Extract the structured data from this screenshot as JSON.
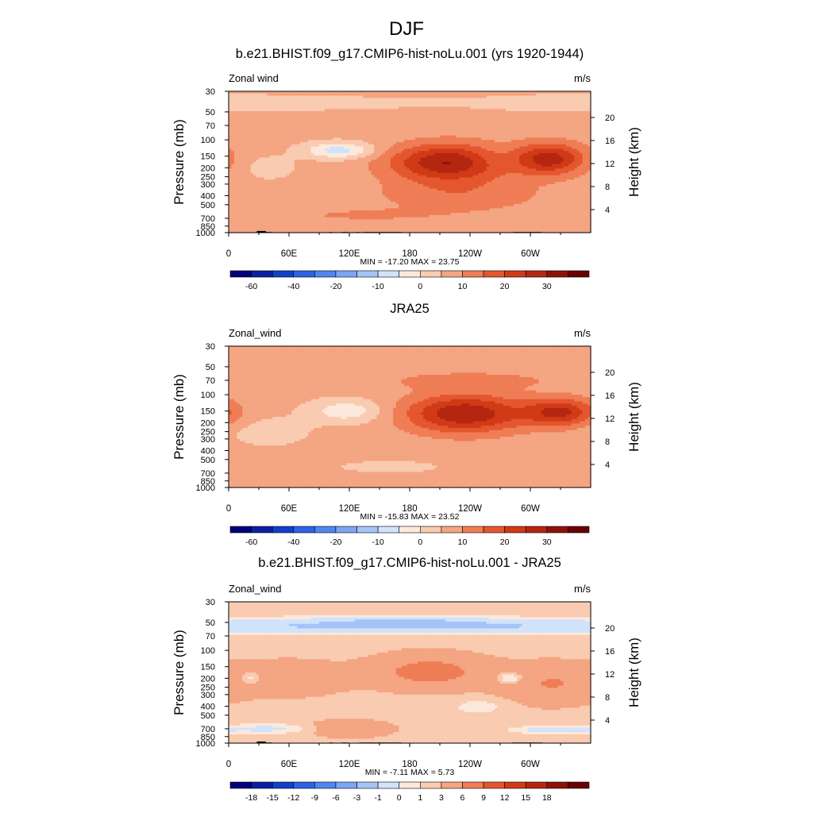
{
  "figure": {
    "season_title": "DJF"
  },
  "chart_data": [
    {
      "type": "heatmap",
      "title": "b.e21.BHIST.f09_g17.CMIP6-hist-noLu.001 (yrs 1920-1944)",
      "variable_label": "Zonal wind",
      "units": "m/s",
      "ylabel": "Pressure (mb)",
      "y2label": "Height (km)",
      "x_ticks": [
        "0",
        "60E",
        "120E",
        "180",
        "120W",
        "60W"
      ],
      "x_tick_lon": [
        0,
        60,
        120,
        180,
        240,
        300
      ],
      "xlim": [
        0,
        360
      ],
      "y_ticks": [
        "30",
        "50",
        "70",
        "100",
        "150",
        "200",
        "250",
        "300",
        "400",
        "500",
        "700",
        "850",
        "1000"
      ],
      "y_tick_p": [
        30,
        50,
        70,
        100,
        150,
        200,
        250,
        300,
        400,
        500,
        700,
        850,
        1000
      ],
      "ylim_mb": [
        1000,
        30
      ],
      "y_scale": "log",
      "height_ticks": [
        "4",
        "8",
        "12",
        "16",
        "20"
      ],
      "height_km": [
        4,
        8,
        12,
        16,
        20
      ],
      "stats_text": "MIN = -17.20  MAX =  23.75",
      "min": -17.2,
      "max": 23.75,
      "levels": [
        -70,
        -60,
        -50,
        -40,
        -30,
        -20,
        -15,
        -10,
        -5,
        0,
        5,
        10,
        15,
        20,
        25,
        30,
        35
      ],
      "colorbar_labels": [
        "-60",
        "-40",
        "-20",
        "-10",
        "0",
        "10",
        "20",
        "30"
      ],
      "colorbar_label_boundary": [
        1,
        3,
        5,
        7,
        9,
        11,
        13,
        15
      ],
      "colors": [
        "#00007a",
        "#0b1fa6",
        "#1240c8",
        "#2a63e6",
        "#4f86f0",
        "#7aa6f3",
        "#a5c4f6",
        "#d1e3fb",
        "#fde9dc",
        "#f9cbb0",
        "#f4a582",
        "#ef7d55",
        "#e4572e",
        "#d13a17",
        "#b52610",
        "#8f1208",
        "#6a0000"
      ],
      "jets": [
        {
          "lon": 110,
          "p": 130,
          "value": -14,
          "wlon": 24,
          "wlogp": 0.14
        },
        {
          "lon": 270,
          "p": 160,
          "value": -5,
          "wlon": 25,
          "wlogp": 0.25
        },
        {
          "lon": 220,
          "p": 175,
          "value": 24,
          "wlon": 42,
          "wlogp": 0.33
        },
        {
          "lon": 318,
          "p": 160,
          "value": 21,
          "wlon": 26,
          "wlogp": 0.28
        },
        {
          "lon": 230,
          "p": 400,
          "value": 7,
          "wlon": 60,
          "wlogp": 0.3
        },
        {
          "lon": 40,
          "p": 200,
          "value": -4,
          "wlon": 18,
          "wlogp": 0.2
        },
        {
          "lon": 70,
          "p": 40,
          "value": -4,
          "wlon": 90,
          "wlogp": 0.12
        },
        {
          "lon": 320,
          "p": 40,
          "value": -3,
          "wlon": 70,
          "wlogp": 0.15
        },
        {
          "lon": 130,
          "p": 650,
          "value": 4,
          "wlon": 60,
          "wlogp": 0.12
        }
      ],
      "background": 1.5,
      "topography": [
        [
          10,
          25,
          1000
        ],
        [
          28,
          37,
          960
        ],
        [
          37,
          43,
          985
        ],
        [
          100,
          103,
          985
        ],
        [
          112,
          119,
          985
        ],
        [
          127,
          130,
          985
        ],
        [
          134,
          172,
          985
        ],
        [
          283,
          311,
          985
        ]
      ]
    },
    {
      "type": "heatmap",
      "title": "JRA25",
      "variable_label": "Zonal_wind",
      "units": "m/s",
      "ylabel": "Pressure (mb)",
      "y2label": "Height (km)",
      "x_ticks": [
        "0",
        "60E",
        "120E",
        "180",
        "120W",
        "60W"
      ],
      "x_tick_lon": [
        0,
        60,
        120,
        180,
        240,
        300
      ],
      "xlim": [
        0,
        360
      ],
      "y_ticks": [
        "30",
        "50",
        "70",
        "100",
        "150",
        "200",
        "250",
        "300",
        "400",
        "500",
        "700",
        "850",
        "1000"
      ],
      "y_tick_p": [
        30,
        50,
        70,
        100,
        150,
        200,
        250,
        300,
        400,
        500,
        700,
        850,
        1000
      ],
      "ylim_mb": [
        1000,
        30
      ],
      "y_scale": "log",
      "height_ticks": [
        "4",
        "8",
        "12",
        "16",
        "20"
      ],
      "height_km": [
        4,
        8,
        12,
        16,
        20
      ],
      "stats_text": "MIN = -15.83  MAX =  23.52",
      "min": -15.83,
      "max": 23.52,
      "levels": [
        -70,
        -60,
        -50,
        -40,
        -30,
        -20,
        -15,
        -10,
        -5,
        0,
        5,
        10,
        15,
        20,
        25,
        30,
        35
      ],
      "colorbar_labels": [
        "-60",
        "-40",
        "-20",
        "-10",
        "0",
        "10",
        "20",
        "30"
      ],
      "colorbar_label_boundary": [
        1,
        3,
        5,
        7,
        9,
        11,
        13,
        15
      ],
      "colors": [
        "#00007a",
        "#0b1fa6",
        "#1240c8",
        "#2a63e6",
        "#4f86f0",
        "#7aa6f3",
        "#a5c4f6",
        "#d1e3fb",
        "#fde9dc",
        "#f9cbb0",
        "#f4a582",
        "#ef7d55",
        "#e4572e",
        "#d13a17",
        "#b52610",
        "#8f1208",
        "#6a0000"
      ],
      "jets": [
        {
          "lon": 118,
          "p": 150,
          "value": -10,
          "wlon": 26,
          "wlogp": 0.2
        },
        {
          "lon": 235,
          "p": 160,
          "value": 23,
          "wlon": 42,
          "wlogp": 0.34
        },
        {
          "lon": 330,
          "p": 155,
          "value": 19,
          "wlon": 25,
          "wlogp": 0.25
        },
        {
          "lon": 240,
          "p": 70,
          "value": 6,
          "wlon": 60,
          "wlogp": 0.15
        },
        {
          "lon": 40,
          "p": 250,
          "value": -4,
          "wlon": 28,
          "wlogp": 0.25
        },
        {
          "lon": 160,
          "p": 600,
          "value": -3,
          "wlon": 40,
          "wlogp": 0.12
        },
        {
          "lon": 70,
          "p": 850,
          "value": 3,
          "wlon": 40,
          "wlogp": 0.1
        }
      ],
      "background": 1.5,
      "topography": []
    },
    {
      "type": "heatmap",
      "title": "b.e21.BHIST.f09_g17.CMIP6-hist-noLu.001 - JRA25",
      "variable_label": "Zonal_wind",
      "units": "m/s",
      "ylabel": "Pressure (mb)",
      "y2label": "Height (km)",
      "x_ticks": [
        "0",
        "60E",
        "120E",
        "180",
        "120W",
        "60W"
      ],
      "x_tick_lon": [
        0,
        60,
        120,
        180,
        240,
        300
      ],
      "xlim": [
        0,
        360
      ],
      "y_ticks": [
        "30",
        "50",
        "70",
        "100",
        "150",
        "200",
        "250",
        "300",
        "400",
        "500",
        "700",
        "850",
        "1000"
      ],
      "y_tick_p": [
        30,
        50,
        70,
        100,
        150,
        200,
        250,
        300,
        400,
        500,
        700,
        850,
        1000
      ],
      "ylim_mb": [
        1000,
        30
      ],
      "y_scale": "log",
      "height_ticks": [
        "4",
        "8",
        "12",
        "16",
        "20"
      ],
      "height_km": [
        4,
        8,
        12,
        16,
        20
      ],
      "stats_text": "MIN = -7.11  MAX =  5.73",
      "min": -7.11,
      "max": 5.73,
      "levels": [
        -21,
        -18,
        -15,
        -12,
        -9,
        -6,
        -3,
        -1,
        0,
        1,
        3,
        6,
        9,
        12,
        15,
        18,
        21
      ],
      "colorbar_labels": [
        "-18",
        "-15",
        "-12",
        "-9",
        "-6",
        "-3",
        "-1",
        "0",
        "1",
        "3",
        "6",
        "9",
        "12",
        "15",
        "18"
      ],
      "colorbar_label_boundary": [
        1,
        2,
        3,
        4,
        5,
        6,
        7,
        8,
        9,
        10,
        11,
        12,
        13,
        14,
        15
      ],
      "colors": [
        "#00007a",
        "#0b1fa6",
        "#1240c8",
        "#2a63e6",
        "#4f86f0",
        "#7aa6f3",
        "#a5c4f6",
        "#d1e3fb",
        "#fde9dc",
        "#f9cbb0",
        "#f4a582",
        "#ef7d55",
        "#e4572e",
        "#d13a17",
        "#b52610",
        "#8f1208",
        "#6a0000"
      ],
      "jets": [
        {
          "lon": 180,
          "p": 55,
          "value": -4,
          "wlon": 220,
          "wlogp": 0.12
        },
        {
          "lon": 170,
          "p": 48,
          "value": -2,
          "wlon": 60,
          "wlogp": 0.08
        },
        {
          "lon": 200,
          "p": 170,
          "value": 3.5,
          "wlon": 40,
          "wlogp": 0.3
        },
        {
          "lon": 60,
          "p": 200,
          "value": 2,
          "wlon": 40,
          "wlogp": 0.3
        },
        {
          "lon": 320,
          "p": 230,
          "value": 2.5,
          "wlon": 35,
          "wlogp": 0.35
        },
        {
          "lon": 22,
          "p": 200,
          "value": -2.5,
          "wlon": 8,
          "wlogp": 0.1
        },
        {
          "lon": 280,
          "p": 200,
          "value": -3,
          "wlon": 9,
          "wlogp": 0.1
        },
        {
          "lon": 40,
          "p": 700,
          "value": -2,
          "wlon": 30,
          "wlogp": 0.08
        },
        {
          "lon": 325,
          "p": 720,
          "value": -3,
          "wlon": 25,
          "wlogp": 0.06
        },
        {
          "lon": 250,
          "p": 400,
          "value": -1,
          "wlon": 20,
          "wlogp": 0.15
        },
        {
          "lon": 120,
          "p": 700,
          "value": 2,
          "wlon": 30,
          "wlogp": 0.15
        }
      ],
      "background": 0.5,
      "topography": [
        [
          10,
          28,
          1000
        ],
        [
          28,
          37,
          960
        ],
        [
          37,
          43,
          985
        ],
        [
          100,
          104,
          985
        ],
        [
          112,
          119,
          985
        ],
        [
          130,
          172,
          985
        ],
        [
          282,
          312,
          985
        ]
      ]
    }
  ]
}
